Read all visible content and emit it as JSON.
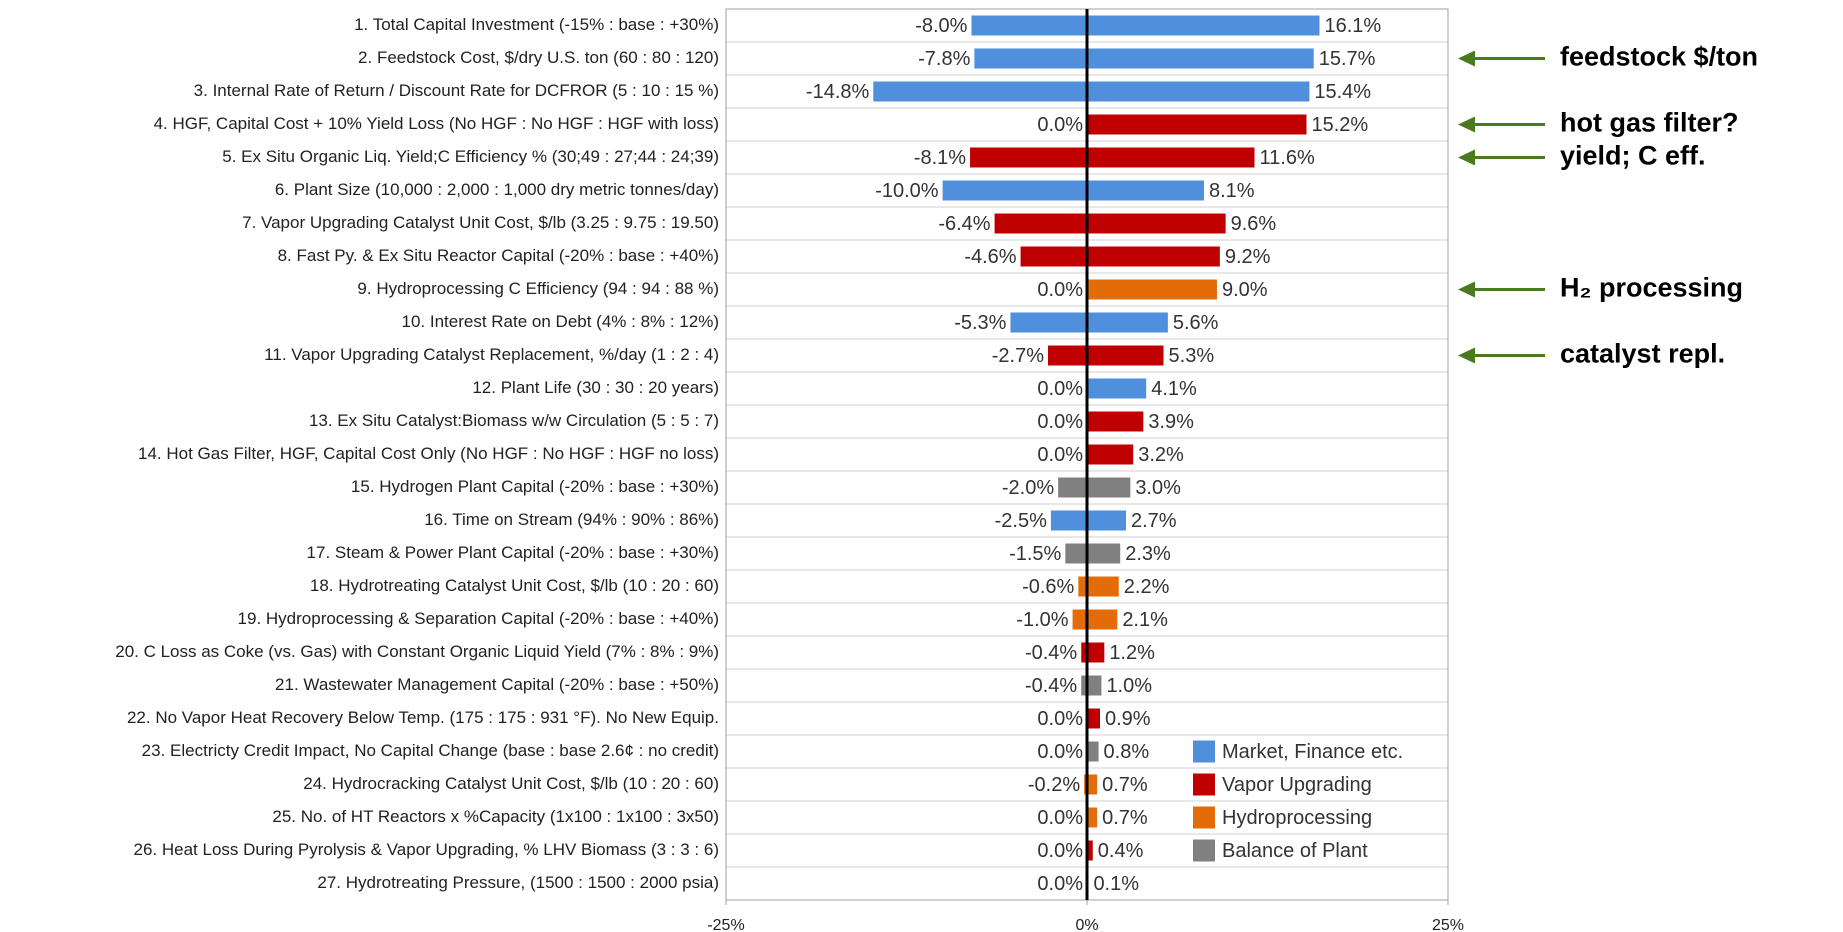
{
  "chart_data": {
    "type": "tornado",
    "categories": [
      "1. Total Capital Investment (-15% : base : +30%)",
      "2. Feedstock Cost, $/dry U.S. ton (60 : 80 : 120)",
      "3. Internal Rate of Return / Discount Rate for DCFROR (5 : 10 : 15 %)",
      "4. HGF, Capital Cost + 10% Yield Loss (No HGF : No HGF : HGF with loss)",
      "5. Ex Situ Organic Liq. Yield;C Efficiency % (30;49 : 27;44 : 24;39)",
      "6. Plant Size (10,000 : 2,000 : 1,000 dry metric tonnes/day)",
      "7. Vapor Upgrading Catalyst Unit Cost, $/lb (3.25 : 9.75 : 19.50)",
      "8. Fast Py. & Ex Situ Reactor Capital (-20% : base : +40%)",
      "9. Hydroprocessing C Efficiency (94 : 94 : 88 %)",
      "10. Interest Rate on Debt (4% : 8% : 12%)",
      "11. Vapor Upgrading Catalyst Replacement, %/day (1 : 2 : 4)",
      "12. Plant Life (30 : 30 : 20 years)",
      "13. Ex Situ Catalyst:Biomass w/w Circulation (5 : 5 : 7)",
      "14. Hot Gas Filter, HGF, Capital Cost Only (No HGF : No HGF : HGF no loss)",
      "15. Hydrogen Plant Capital (-20% : base : +30%)",
      "16. Time on Stream (94% : 90% : 86%)",
      "17. Steam & Power Plant Capital (-20% : base : +30%)",
      "18. Hydrotreating Catalyst Unit Cost, $/lb (10 : 20 : 60)",
      "19. Hydroprocessing & Separation Capital (-20% : base : +40%)",
      "20. C Loss as Coke (vs. Gas) with Constant Organic Liquid Yield (7% : 8% : 9%)",
      "21. Wastewater Management Capital (-20% : base : +50%)",
      "22. No Vapor Heat Recovery Below Temp. (175 : 175 : 931 °F). No New Equip.",
      "23. Electricty Credit Impact, No Capital Change (base : base 2.6¢ : no credit)",
      "24. Hydrocracking Catalyst Unit Cost, $/lb (10 : 20 : 60)",
      "25. No. of HT Reactors x %Capacity (1x100 : 1x100 : 3x50)",
      "26. Heat Loss During Pyrolysis & Vapor Upgrading,  % LHV Biomass (3 : 3 : 6)",
      "27. Hydrotreating Pressure, (1500 : 1500 : 2000 psia)"
    ],
    "low": [
      -8.0,
      -7.8,
      -14.8,
      0.0,
      -8.1,
      -10.0,
      -6.4,
      -4.6,
      0.0,
      -5.3,
      -2.7,
      0.0,
      0.0,
      0.0,
      -2.0,
      -2.5,
      -1.5,
      -0.6,
      -1.0,
      -0.4,
      -0.4,
      0.0,
      0.0,
      -0.2,
      0.0,
      0.0,
      0.0
    ],
    "low_labels": [
      "-8.0%",
      "-7.8%",
      "-14.8%",
      "0.0%",
      "-8.1%",
      "-10.0%",
      "-6.4%",
      "-4.6%",
      "0.0%",
      "-5.3%",
      "-2.7%",
      "0.0%",
      "0.0%",
      "0.0%",
      "-2.0%",
      "-2.5%",
      "-1.5%",
      "-0.6%",
      "-1.0%",
      "-0.4%",
      "-0.4%",
      "0.0%",
      "0.0%",
      "-0.2%",
      "0.0%",
      "0.0%",
      "0.0%"
    ],
    "high": [
      16.1,
      15.7,
      15.4,
      15.2,
      11.6,
      8.1,
      9.6,
      9.2,
      9.0,
      5.6,
      5.3,
      4.1,
      3.9,
      3.2,
      3.0,
      2.7,
      2.3,
      2.2,
      2.1,
      1.2,
      1.0,
      0.9,
      0.8,
      0.7,
      0.7,
      0.4,
      0.1
    ],
    "high_labels": [
      "16.1%",
      "15.7%",
      "15.4%",
      "15.2%",
      "11.6%",
      "8.1%",
      "9.6%",
      "9.2%",
      "9.0%",
      "5.6%",
      "5.3%",
      "4.1%",
      "3.9%",
      "3.2%",
      "3.0%",
      "2.7%",
      "2.3%",
      "2.2%",
      "2.1%",
      "1.2%",
      "1.0%",
      "0.9%",
      "0.8%",
      "0.7%",
      "0.7%",
      "0.4%",
      "0.1%"
    ],
    "group": [
      0,
      0,
      0,
      1,
      1,
      0,
      1,
      1,
      2,
      0,
      1,
      0,
      1,
      1,
      3,
      0,
      3,
      2,
      2,
      1,
      3,
      1,
      3,
      2,
      2,
      1,
      0
    ],
    "legend": [
      {
        "name": "Market, Finance etc.",
        "color": "#4f8fdc"
      },
      {
        "name": "Vapor Upgrading",
        "color": "#c00000"
      },
      {
        "name": "Hydroprocessing",
        "color": "#e36c09"
      },
      {
        "name": "Balance of Plant",
        "color": "#808080"
      }
    ],
    "xlim": [
      -25,
      25
    ],
    "xticks": [
      {
        "value": -25,
        "label": "-25%"
      },
      {
        "value": 0,
        "label": "0%"
      },
      {
        "value": 25,
        "label": "25%"
      }
    ],
    "annotations": [
      "feedstock $/ton",
      "hot gas filter?",
      "yield; C eff.",
      "H₂ processing",
      "catalyst repl."
    ],
    "annotation_color": "#4b7a1e"
  }
}
